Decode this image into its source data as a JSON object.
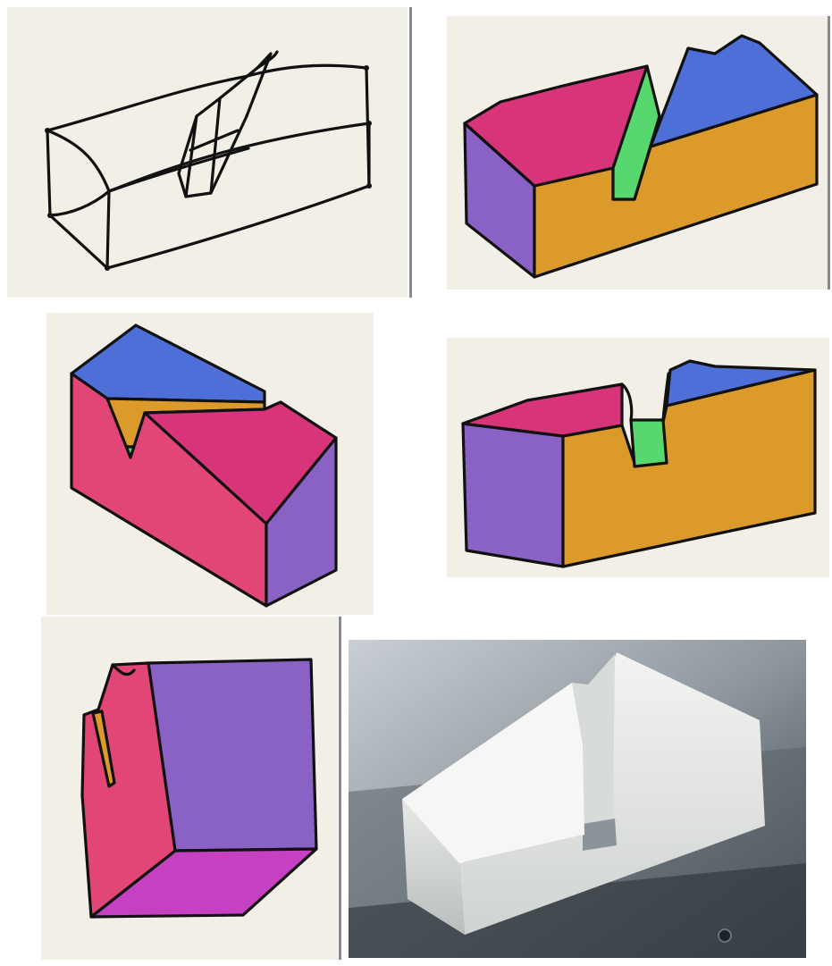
{
  "figure": {
    "panels": [
      {
        "id": "wireframe-sketch",
        "style": "line-drawing"
      },
      {
        "id": "colored-model-front",
        "faces": [
          "front",
          "side",
          "top-left",
          "top-right",
          "notch"
        ]
      },
      {
        "id": "colored-model-rotated",
        "faces": [
          "front",
          "side",
          "top-back",
          "top-front",
          "notch-inner",
          "notch-floor"
        ]
      },
      {
        "id": "colored-model-frontal",
        "faces": [
          "front",
          "side",
          "top-left",
          "top-right",
          "notch"
        ]
      },
      {
        "id": "colored-model-end-view",
        "faces": [
          "end",
          "front",
          "bottom",
          "notch"
        ]
      },
      {
        "id": "fabricated-object-photo",
        "style": "photograph"
      }
    ],
    "colors": {
      "paper": "#f2efe6",
      "outline": "#111111",
      "front_orange": "#dc9a2a",
      "side_purple": "#8a62c6",
      "top_magenta": "#d8347a",
      "top_blue": "#4e6fd8",
      "notch_green": "#57d86f",
      "front_pink": "#e14677",
      "bottom_magenta": "#c640c2"
    }
  }
}
